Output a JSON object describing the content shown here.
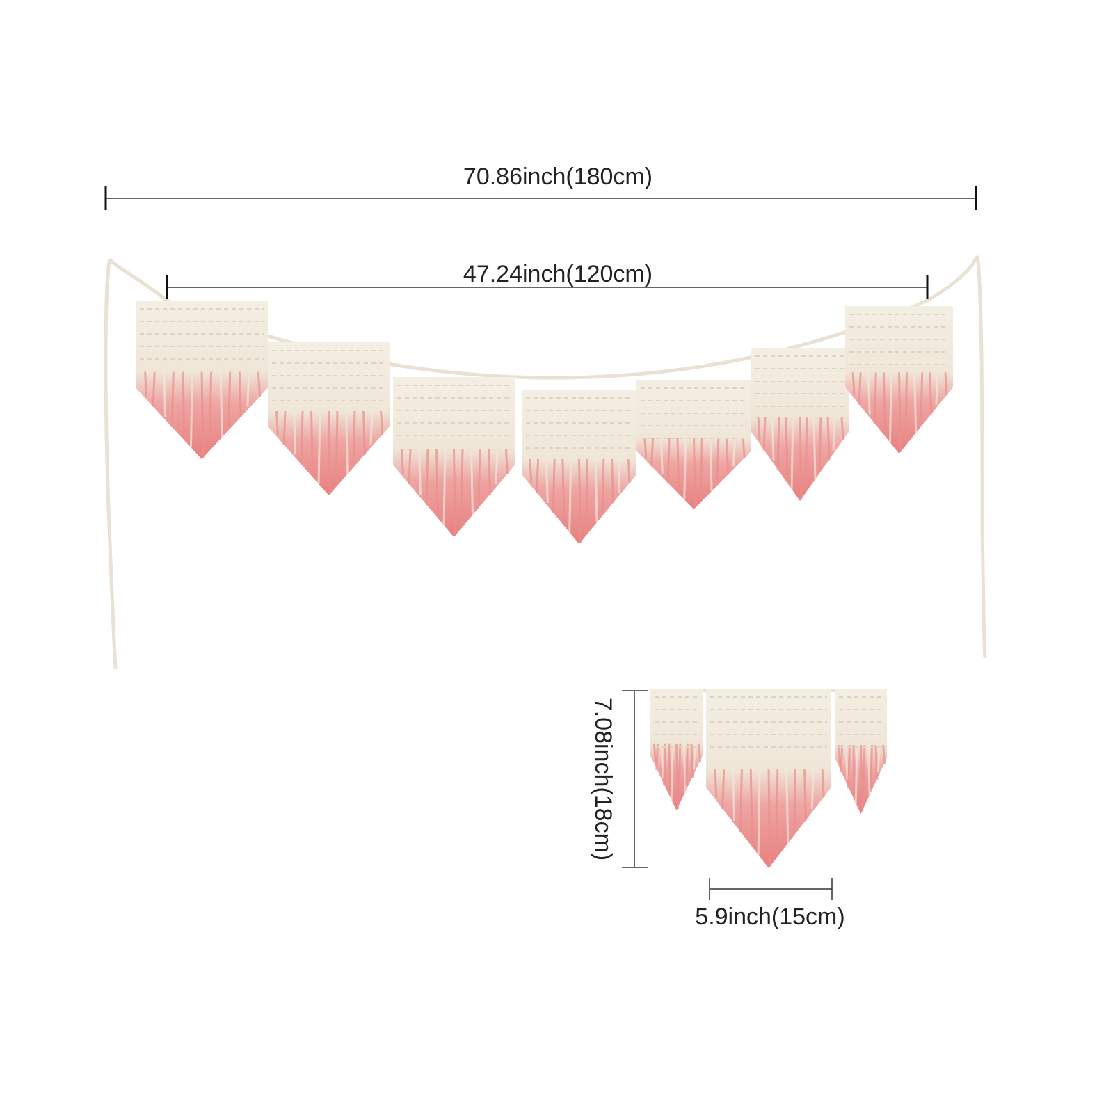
{
  "dimensions": {
    "total_length": "70.86inch(180cm)",
    "banner_length": "47.24inch(120cm)",
    "pennant_height": "7.08inch(18cm)",
    "pennant_width": "5.9inch(15cm)"
  }
}
